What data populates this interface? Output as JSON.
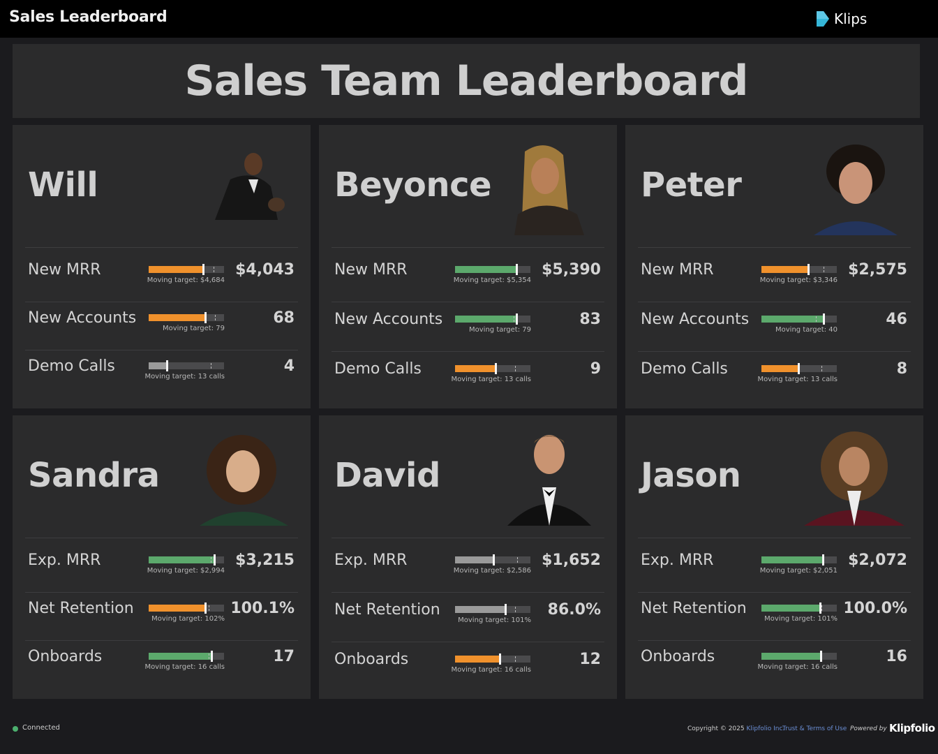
{
  "topbar": {
    "title": "Sales Leaderboard",
    "brand": "Klips"
  },
  "banner": {
    "title": "Sales Team Leaderboard"
  },
  "colors": {
    "orange": "#f0912c",
    "green": "#5ca96c",
    "gray": "#9a9a9a",
    "track": "#4a4a4c"
  },
  "people": [
    {
      "name": "Will",
      "metrics": [
        {
          "label": "New MRR",
          "value": "$4,043",
          "caption": "Moving target: $4,684",
          "progress": 0.73,
          "target": 0.86,
          "color": "orange"
        },
        {
          "label": "New Accounts",
          "value": "68",
          "caption": "Moving target: 79",
          "progress": 0.76,
          "target": 0.88,
          "color": "orange"
        },
        {
          "label": "Demo Calls",
          "value": "4",
          "caption": "Moving target: 13 calls",
          "progress": 0.25,
          "target": 0.82,
          "color": "gray"
        }
      ]
    },
    {
      "name": "Beyonce",
      "metrics": [
        {
          "label": "New MRR",
          "value": "$5,390",
          "caption": "Moving target: $5,354",
          "progress": 0.82,
          "target": 0.81,
          "color": "green"
        },
        {
          "label": "New Accounts",
          "value": "83",
          "caption": "Moving target: 79",
          "progress": 0.82,
          "target": 0.78,
          "color": "green"
        },
        {
          "label": "Demo Calls",
          "value": "9",
          "caption": "Moving target: 13 calls",
          "progress": 0.55,
          "target": 0.8,
          "color": "orange"
        }
      ]
    },
    {
      "name": "Peter",
      "metrics": [
        {
          "label": "New MRR",
          "value": "$2,575",
          "caption": "Moving target: $3,346",
          "progress": 0.63,
          "target": 0.82,
          "color": "orange"
        },
        {
          "label": "New Accounts",
          "value": "46",
          "caption": "Moving target: 40",
          "progress": 0.83,
          "target": 0.72,
          "color": "green"
        },
        {
          "label": "Demo Calls",
          "value": "8",
          "caption": "Moving target: 13 calls",
          "progress": 0.5,
          "target": 0.8,
          "color": "orange"
        }
      ]
    },
    {
      "name": "Sandra",
      "metrics": [
        {
          "label": "Exp. MRR",
          "value": "$3,215",
          "caption": "Moving target: $2,994",
          "progress": 0.88,
          "target": 0.82,
          "color": "green"
        },
        {
          "label": "Net Retention",
          "value": "100.1%",
          "caption": "Moving target: 102%",
          "progress": 0.76,
          "target": 0.8,
          "color": "orange"
        },
        {
          "label": "Onboards",
          "value": "17",
          "caption": "Moving target: 16 calls",
          "progress": 0.84,
          "target": 0.8,
          "color": "green"
        }
      ]
    },
    {
      "name": "David",
      "metrics": [
        {
          "label": "Exp. MRR",
          "value": "$1,652",
          "caption": "Moving target: $2,586",
          "progress": 0.52,
          "target": 0.82,
          "color": "gray"
        },
        {
          "label": "Net Retention",
          "value": "86.0%",
          "caption": "Moving target: 101%",
          "progress": 0.68,
          "target": 0.8,
          "color": "gray"
        },
        {
          "label": "Onboards",
          "value": "12",
          "caption": "Moving target: 16 calls",
          "progress": 0.6,
          "target": 0.8,
          "color": "orange"
        }
      ]
    },
    {
      "name": "Jason",
      "metrics": [
        {
          "label": "Exp. MRR",
          "value": "$2,072",
          "caption": "Moving target: $2,051",
          "progress": 0.82,
          "target": 0.81,
          "color": "green"
        },
        {
          "label": "Net Retention",
          "value": "100.0%",
          "caption": "Moving target: 101%",
          "progress": 0.79,
          "target": 0.8,
          "color": "green"
        },
        {
          "label": "Onboards",
          "value": "16",
          "caption": "Moving target: 16 calls",
          "progress": 0.8,
          "target": 0.8,
          "color": "green"
        }
      ]
    }
  ],
  "footer": {
    "status": "Connected",
    "copyright": "Copyright © 2025",
    "company": "Klipfolio Inc.",
    "terms": "Trust & Terms of Use",
    "powered": "Powered by",
    "logo": "Klipfolio"
  }
}
